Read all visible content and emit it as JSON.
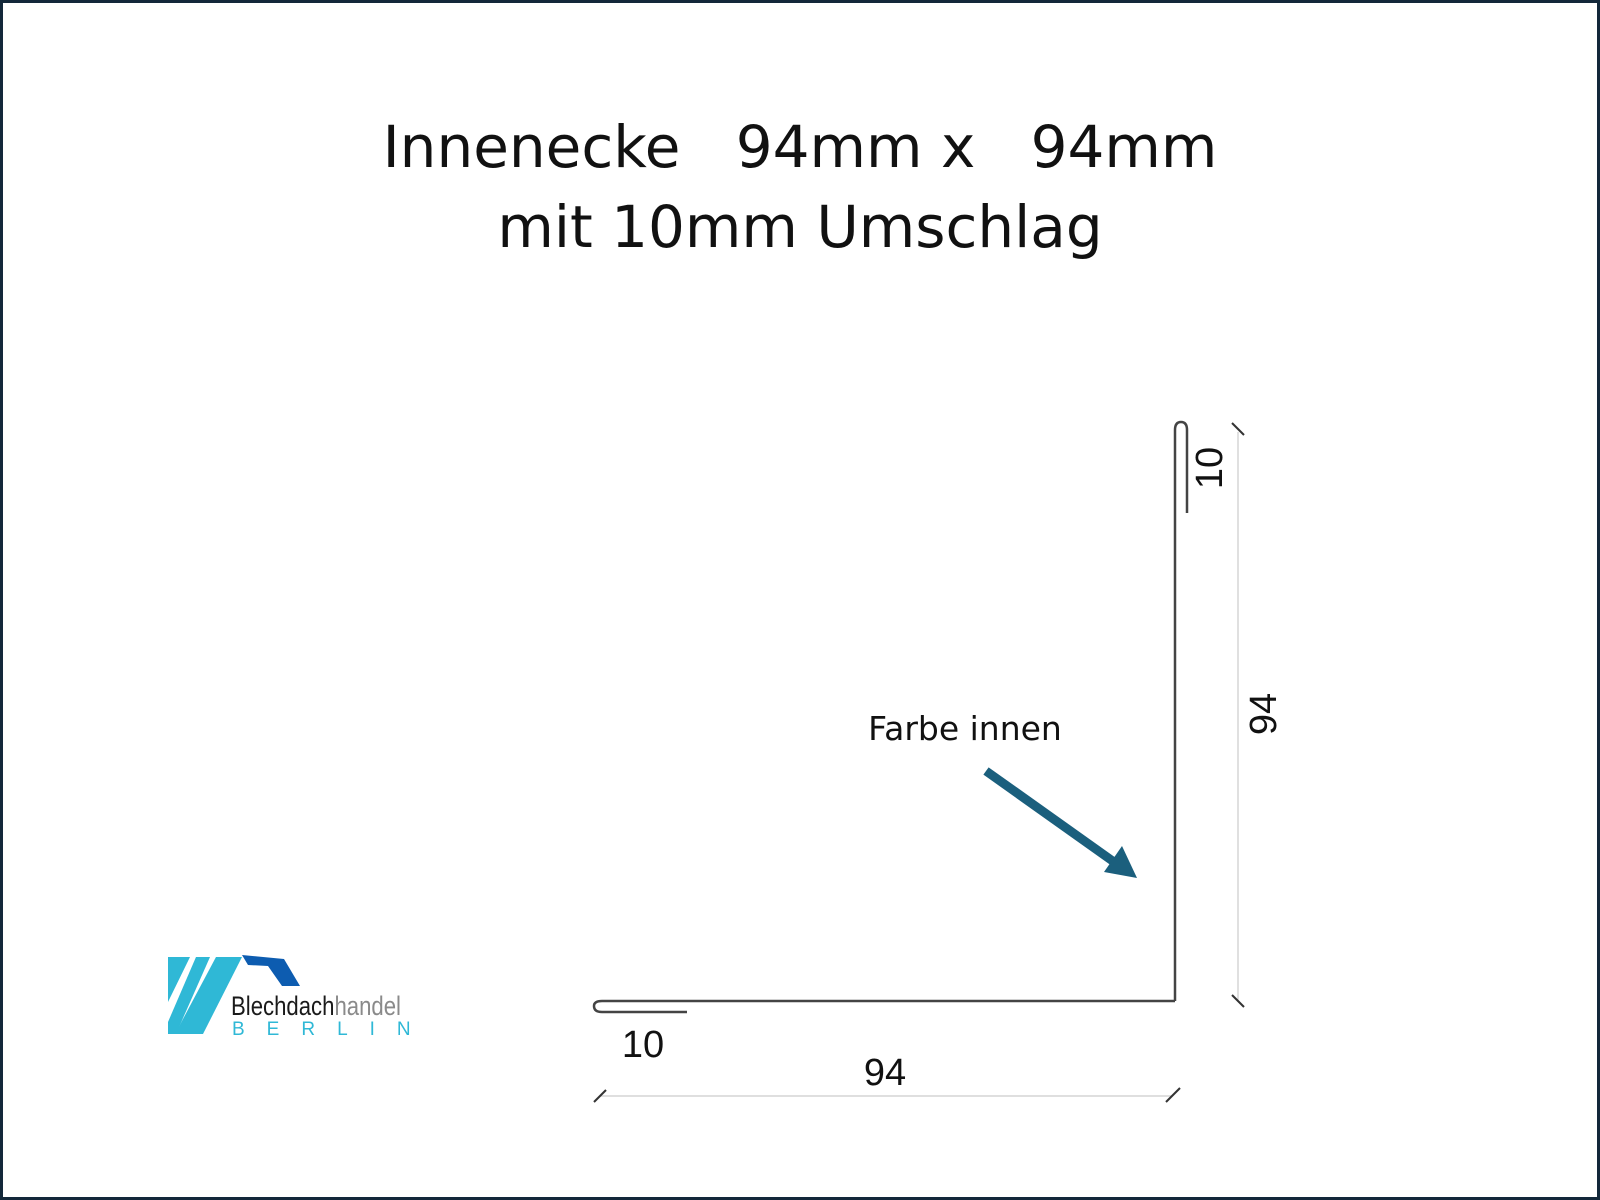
{
  "title": {
    "line1": "Innenecke   94mm x   94mm",
    "line2": "mit 10mm Umschlag"
  },
  "dimensions": {
    "top_hem": "10",
    "vertical_leg": "94",
    "bottom_hem": "10",
    "horizontal_leg": "94"
  },
  "annotation": {
    "text": "Farbe innen",
    "arrow_color": "#1b5f7d"
  },
  "logo": {
    "name": "Blechdachhandel",
    "part1": "Blechdach",
    "part2": "handel",
    "city": "BERLIN",
    "colors": {
      "light": "#2fb8d6",
      "dark": "#0d5cb0",
      "text": "#1a1a1a",
      "grey": "#8a8a8a"
    }
  }
}
